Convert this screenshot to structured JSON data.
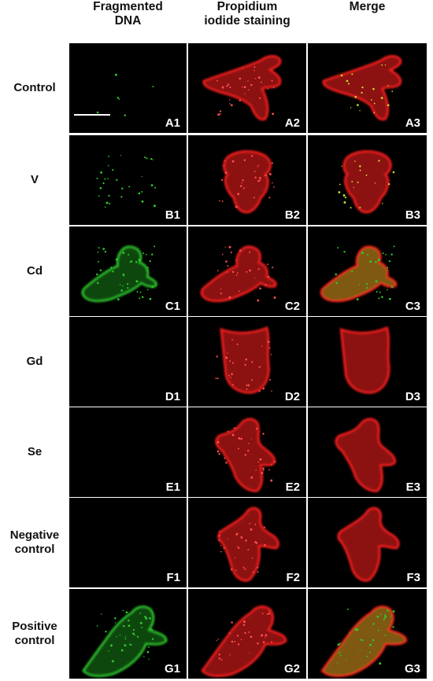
{
  "headers": [
    "Fragmented\nDNA",
    "Propidium\niodide staining",
    "Merge"
  ],
  "rows": [
    {
      "label": "Control",
      "panels": [
        "A1",
        "A2",
        "A3"
      ]
    },
    {
      "label": "V",
      "panels": [
        "B1",
        "B2",
        "B3"
      ]
    },
    {
      "label": "Cd",
      "panels": [
        "C1",
        "C2",
        "C3"
      ]
    },
    {
      "label": "Gd",
      "panels": [
        "D1",
        "D2",
        "D3"
      ]
    },
    {
      "label": "Se",
      "panels": [
        "E1",
        "E2",
        "E3"
      ]
    },
    {
      "label": "Negative\ncontrol",
      "panels": [
        "F1",
        "F2",
        "F3"
      ]
    },
    {
      "label": "Positive\ncontrol",
      "panels": [
        "G1",
        "G2",
        "G3"
      ]
    }
  ],
  "colors": {
    "green": "#2ecc2e",
    "red": "#ff2020",
    "merge": "#e8a020"
  }
}
